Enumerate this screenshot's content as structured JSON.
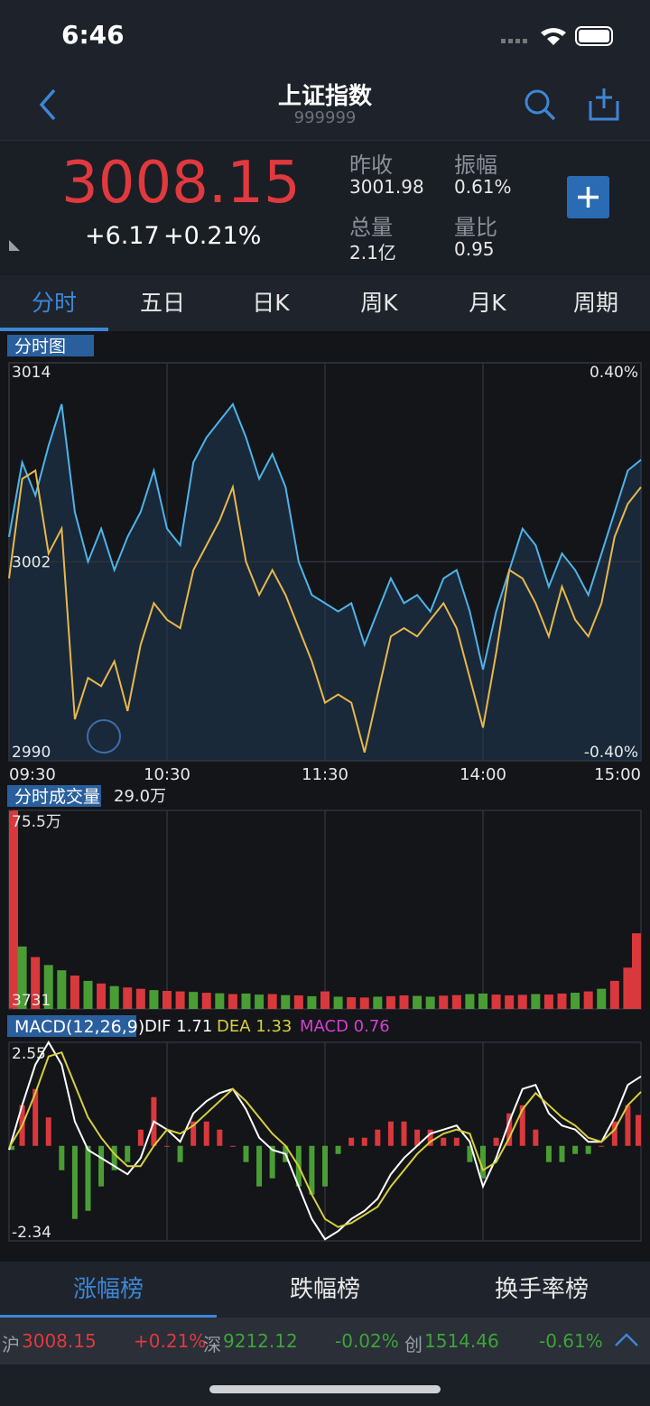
{
  "status_bar": {
    "time": "6:46"
  },
  "header": {
    "title": "上证指数",
    "code": "999999"
  },
  "quote": {
    "price": "3008.15",
    "change": "+6.17",
    "change_pct": "+0.21%",
    "stats": [
      {
        "label": "昨收",
        "value": "3001.98"
      },
      {
        "label": "振幅",
        "value": "0.61%"
      },
      {
        "label": "总量",
        "value": "2.1亿"
      },
      {
        "label": "量比",
        "value": "0.95"
      }
    ]
  },
  "tabs": [
    "分时",
    "五日",
    "日K",
    "周K",
    "月K",
    "周期"
  ],
  "intraday_chart": {
    "type": "line",
    "title": "分时图",
    "x": [
      0,
      5,
      10,
      15,
      20,
      25,
      30,
      35,
      40,
      45,
      50,
      55,
      60,
      65,
      70,
      75,
      80,
      85,
      90,
      95,
      100,
      105,
      110,
      115,
      120,
      125,
      130,
      135,
      140,
      145,
      150,
      155,
      160,
      165,
      170,
      175,
      180,
      185,
      190,
      195,
      200,
      205,
      210,
      215,
      220,
      225,
      230,
      235,
      240
    ],
    "series": [
      {
        "color": "#4fb3e8",
        "values": [
          3003.5,
          3008,
          3006,
          3009,
          3011.5,
          3005,
          3002,
          3004,
          3001.5,
          3003.5,
          3005,
          3007.5,
          3004,
          3003,
          3008,
          3009.5,
          3010.5,
          3011.5,
          3009.5,
          3007,
          3008.5,
          3006.5,
          3002,
          3000,
          2999.5,
          2999,
          2999.5,
          2997,
          2999,
          3001,
          2999.5,
          3000,
          2999,
          3001,
          3001.5,
          2999,
          2995.5,
          2999,
          3001.5,
          3004,
          3003,
          3000.5,
          3002.5,
          3001.5,
          3000,
          3002.5,
          3005,
          3007.5,
          3008.15
        ]
      },
      {
        "color": "#e8b84a",
        "values": [
          3001,
          3007,
          3007.5,
          3002.5,
          3004,
          2992.5,
          2995,
          2994.5,
          2996,
          2993,
          2997,
          2999.5,
          2998.5,
          2998,
          3001.5,
          3003,
          3004.5,
          3006.5,
          3002,
          3000,
          3001.5,
          3000,
          2998,
          2996,
          2993.5,
          2994,
          2993.5,
          2990.5,
          2994,
          2997.5,
          2998,
          2997.5,
          2998.5,
          2999.5,
          2998,
          2995,
          2992,
          2996.5,
          3001.5,
          3001,
          2999.5,
          2997.5,
          3000.5,
          2998.5,
          2997.5,
          2999.5,
          3003.5,
          3005.5,
          3006.5
        ]
      }
    ],
    "xlim": [
      0,
      240
    ],
    "xticks": [
      {
        "value": 0,
        "label": "09:30"
      },
      {
        "value": 60,
        "label": "10:30"
      },
      {
        "value": 120,
        "label": "11:30"
      },
      {
        "value": 180,
        "label": "14:00"
      },
      {
        "value": 240,
        "label": "15:00"
      }
    ],
    "ylim": [
      2990,
      3014
    ],
    "yticks": [
      3014,
      3002,
      2990
    ],
    "y2lim": [
      -0.4,
      0.4
    ],
    "y2ticks": [
      {
        "value": 0.4,
        "label": "0.40%"
      },
      {
        "value": -0.4,
        "label": "-0.40%"
      }
    ]
  },
  "volume_chart": {
    "type": "bar",
    "title": "分时成交量",
    "current": "29.0万",
    "x": [
      0,
      5,
      10,
      15,
      20,
      25,
      30,
      35,
      40,
      45,
      50,
      55,
      60,
      65,
      70,
      75,
      80,
      85,
      90,
      95,
      100,
      105,
      110,
      115,
      120,
      125,
      130,
      135,
      140,
      145,
      150,
      155,
      160,
      165,
      170,
      175,
      180,
      185,
      190,
      195,
      200,
      205,
      210,
      215,
      220,
      225,
      230,
      235,
      240
    ],
    "values": [
      755000,
      240000,
      200000,
      170000,
      150000,
      130000,
      110000,
      100000,
      90000,
      85000,
      80000,
      75000,
      72000,
      70000,
      68000,
      65000,
      63000,
      60000,
      62000,
      58000,
      60000,
      56000,
      55000,
      52000,
      70000,
      50000,
      48000,
      47000,
      50000,
      52000,
      55000,
      53000,
      50000,
      54000,
      56000,
      60000,
      62000,
      58000,
      55000,
      57000,
      60000,
      58000,
      62000,
      65000,
      70000,
      80000,
      110000,
      160000,
      290000
    ],
    "directions": [
      "up",
      "down",
      "up",
      "down",
      "down",
      "up",
      "down",
      "up",
      "down",
      "up",
      "up",
      "down",
      "up",
      "up",
      "down",
      "up",
      "down",
      "up",
      "down",
      "down",
      "up",
      "down",
      "up",
      "down",
      "up",
      "down",
      "up",
      "up",
      "down",
      "up",
      "up",
      "down",
      "down",
      "up",
      "up",
      "down",
      "down",
      "up",
      "up",
      "up",
      "down",
      "up",
      "up",
      "down",
      "up",
      "down",
      "up",
      "up",
      "up"
    ],
    "colors": {
      "up": "#d9383c",
      "down": "#4a9d34"
    },
    "xlim": [
      0,
      240
    ],
    "ylim": [
      3731,
      755000
    ],
    "yticks": [
      {
        "value": 755000,
        "label": "75.5万"
      },
      3731
    ]
  },
  "macd_chart": {
    "type": "macd",
    "title": "MACD(12,26,9)",
    "labels": {
      "dif": "DIF 1.71",
      "dea": "DEA 1.33",
      "macd": "MACD 0.76"
    },
    "x": [
      0,
      5,
      10,
      15,
      20,
      25,
      30,
      35,
      40,
      45,
      50,
      55,
      60,
      65,
      70,
      75,
      80,
      85,
      90,
      95,
      100,
      105,
      110,
      115,
      120,
      125,
      130,
      135,
      140,
      145,
      150,
      155,
      160,
      165,
      170,
      175,
      180,
      185,
      190,
      195,
      200,
      205,
      210,
      215,
      220,
      225,
      230,
      235,
      240
    ],
    "series": [
      {
        "color": "#ffffff",
        "values": [
          -0.1,
          1.0,
          2.0,
          2.55,
          2.0,
          0.6,
          -0.1,
          -0.3,
          -0.5,
          -0.7,
          -0.3,
          0.6,
          0.4,
          0.1,
          0.8,
          1.1,
          1.3,
          1.4,
          0.9,
          0.2,
          -0.1,
          -0.2,
          -1.0,
          -1.8,
          -2.3,
          -2.1,
          -1.8,
          -1.6,
          -1.3,
          -0.7,
          -0.3,
          0,
          0.3,
          0.4,
          0.5,
          0.1,
          -1.0,
          -0.3,
          0.6,
          1.4,
          1.5,
          0.8,
          0.5,
          0.4,
          0.1,
          0.1,
          0.7,
          1.5,
          1.71
        ]
      },
      {
        "color": "#d9cf3a",
        "values": [
          -0.05,
          0.5,
          1.3,
          2.2,
          2.3,
          1.5,
          0.7,
          0.2,
          -0.2,
          -0.5,
          -0.5,
          0,
          0.4,
          0.3,
          0.5,
          0.8,
          1.1,
          1.4,
          1.1,
          0.7,
          0.3,
          0,
          -0.5,
          -1.2,
          -1.8,
          -2.0,
          -1.9,
          -1.7,
          -1.5,
          -1.0,
          -0.6,
          -0.2,
          0.1,
          0.3,
          0.4,
          0.3,
          -0.6,
          -0.4,
          0.2,
          0.9,
          1.3,
          1.0,
          0.7,
          0.5,
          0.2,
          0.1,
          0.4,
          1.0,
          1.33
        ]
      }
    ],
    "histogram": {
      "values": [
        -0.1,
        1.0,
        1.4,
        0.7,
        -0.6,
        -1.8,
        -1.6,
        -1.0,
        -0.6,
        -0.4,
        0.4,
        1.2,
        0,
        -0.4,
        0.6,
        0.6,
        0.4,
        0,
        -0.4,
        -1.0,
        -0.8,
        -0.4,
        -1.0,
        -1.2,
        -1.0,
        -0.2,
        0.2,
        0.2,
        0.4,
        0.6,
        0.6,
        0.4,
        0.4,
        0.2,
        0.2,
        -0.4,
        -0.8,
        0.2,
        0.8,
        1.0,
        0.4,
        -0.4,
        -0.4,
        -0.2,
        -0.2,
        0,
        0.6,
        1.0,
        0.76
      ],
      "colors": {
        "up": "#d9383c",
        "down": "#4a9d34"
      }
    },
    "xlim": [
      0,
      240
    ],
    "ylim": [
      -2.34,
      2.55
    ],
    "yticks": [
      2.55,
      -2.34
    ]
  },
  "rank_tabs": [
    "涨幅榜",
    "跌幅榜",
    "换手率榜"
  ],
  "ticker": [
    {
      "market": "沪",
      "price": "3008.15",
      "change": "+0.21%"
    },
    {
      "market": "深",
      "price": "9212.12",
      "change": "-0.02%"
    },
    {
      "market": "创",
      "price": "1514.46",
      "change": "-0.61%"
    }
  ]
}
